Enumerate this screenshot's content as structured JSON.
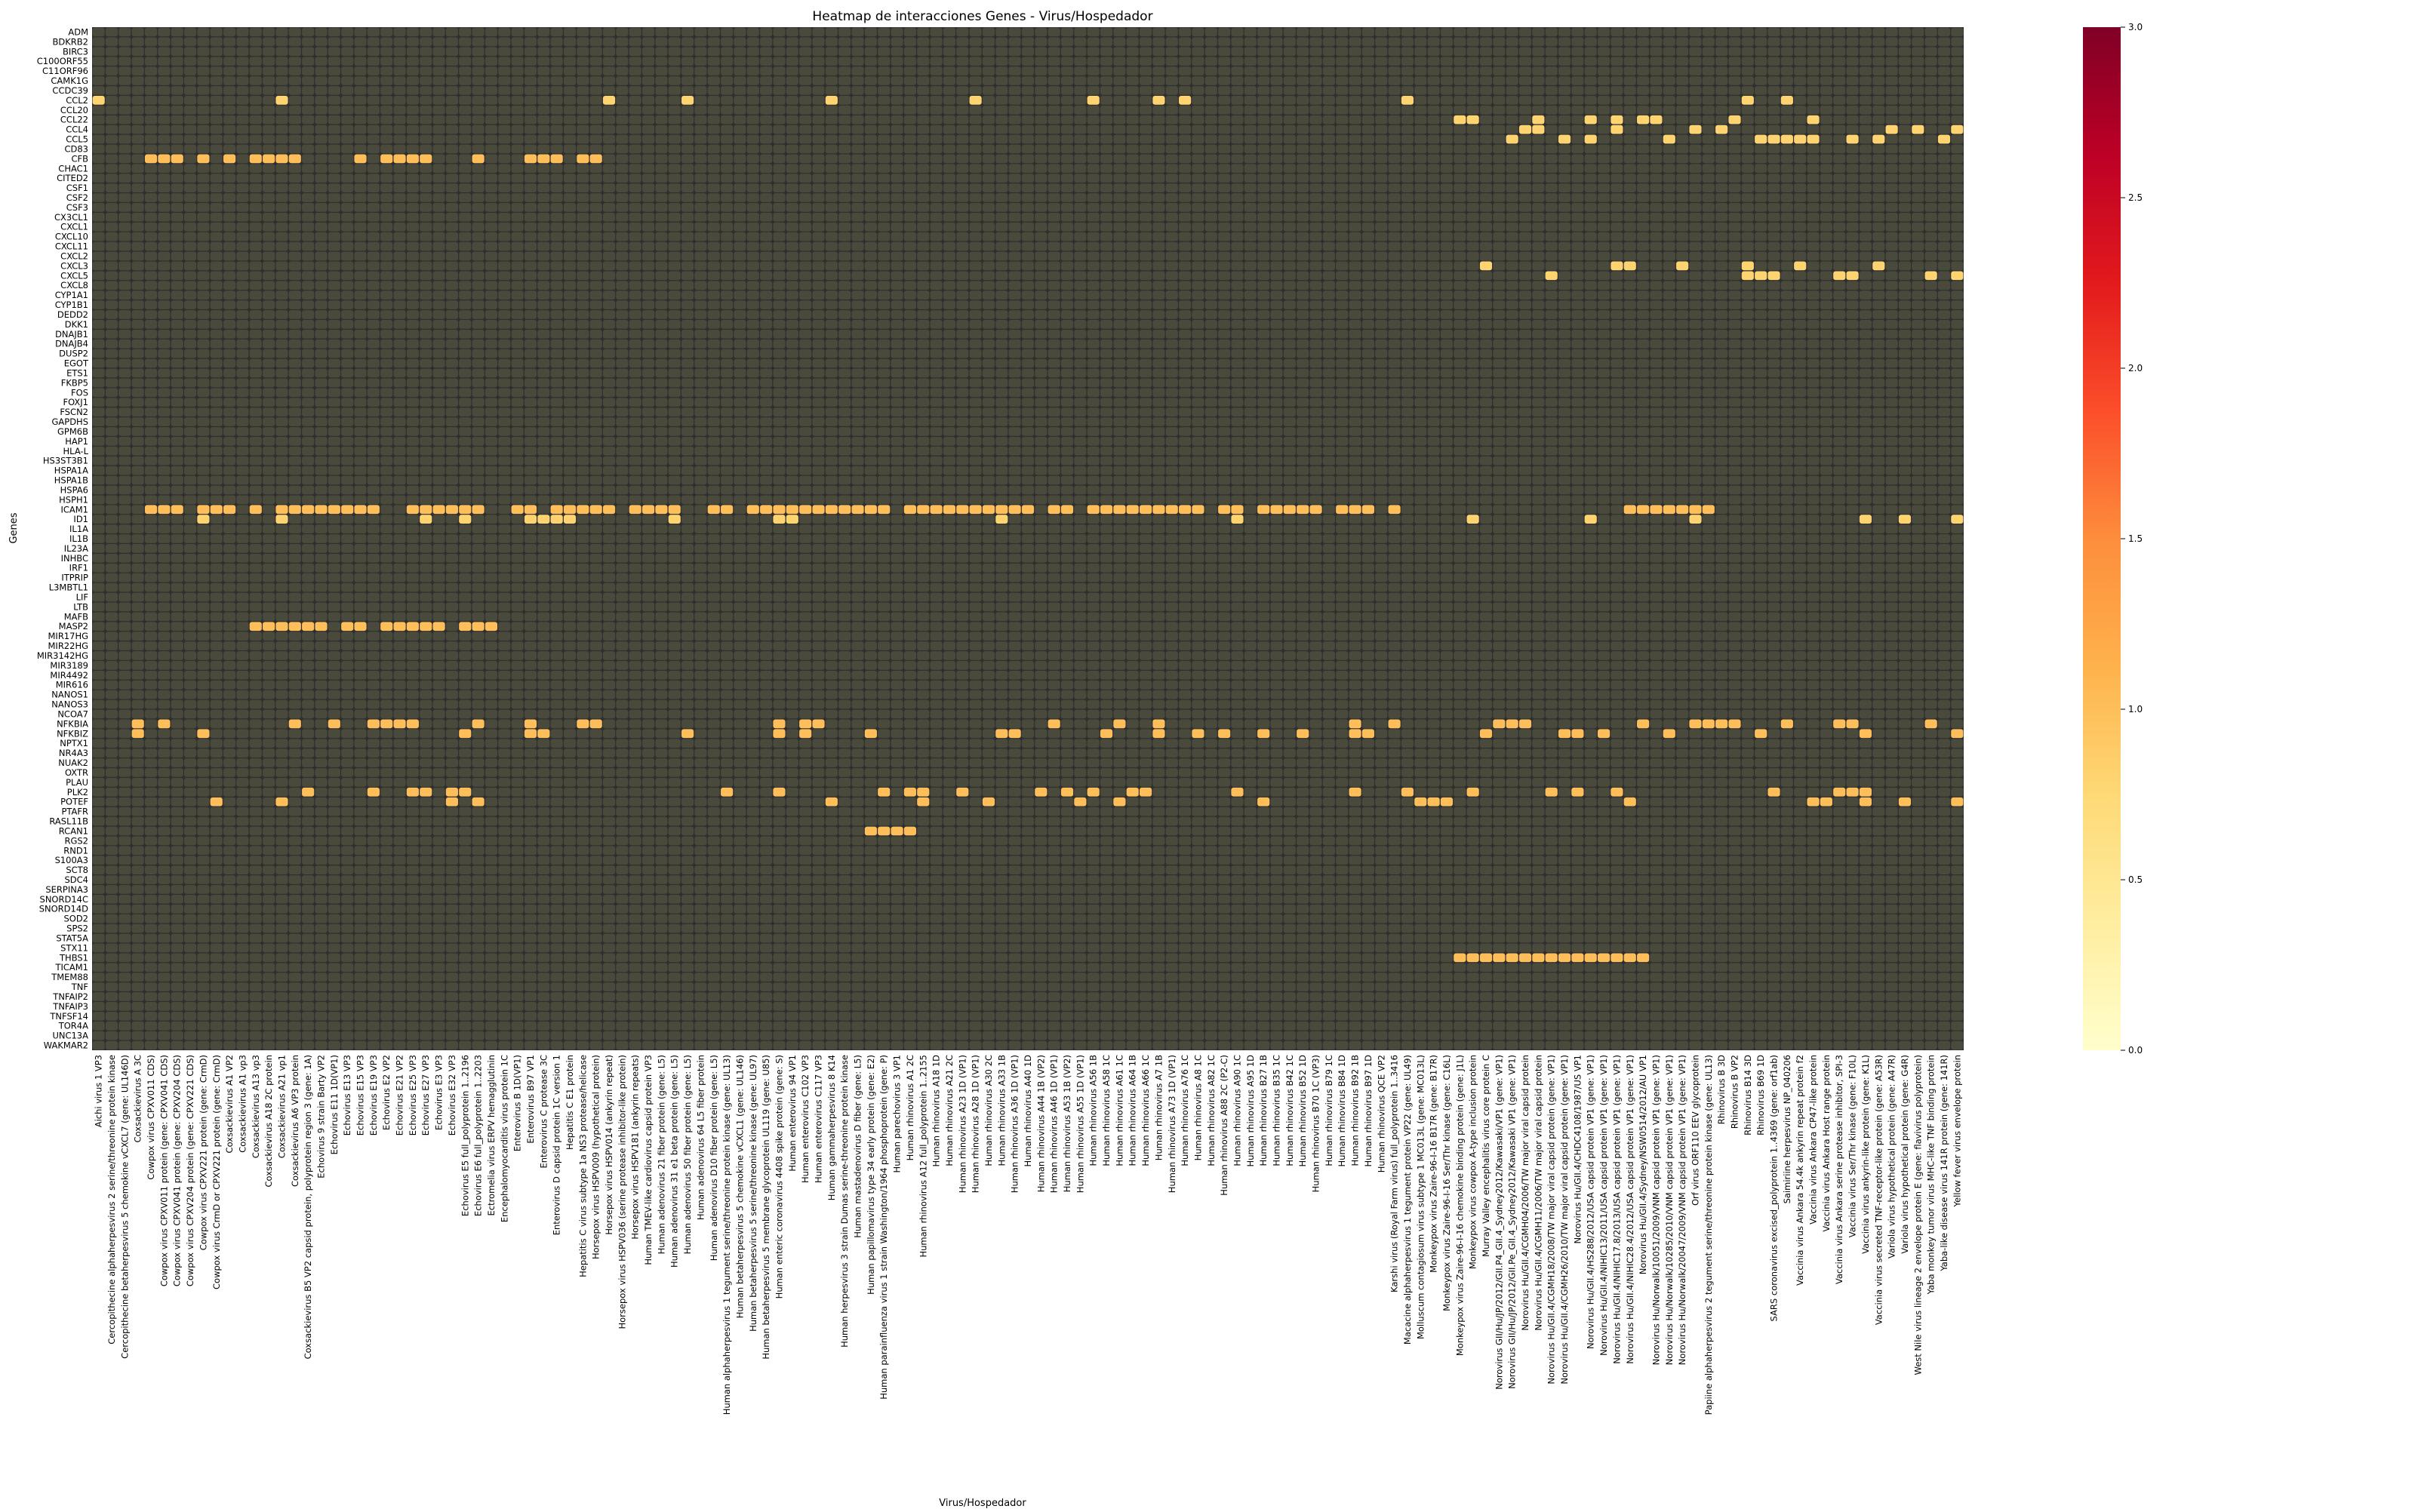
{
  "chart_data": {
    "type": "heatmap",
    "title": "Heatmap de interacciones Genes - Virus/Hospedador",
    "xlabel": "Virus/Hospedador",
    "ylabel": "Genes",
    "colorbar": {
      "range": [
        0.0,
        3.0
      ],
      "ticks": [
        "0.0",
        "0.5",
        "1.0",
        "1.5",
        "2.0",
        "2.5",
        "3.0"
      ],
      "colormap": "YlOrRd",
      "colors": [
        "#ffffcc",
        "#ffeda0",
        "#fed976",
        "#feb24c",
        "#fd8d3c",
        "#fc4e2a",
        "#e31a1c",
        "#bd0026",
        "#800026"
      ]
    },
    "grid": true,
    "cell_border_color": "#2f2f2f",
    "rows": [
      "ADM",
      "BDKRB2",
      "BIRC3",
      "C100ORF55",
      "C11ORF96",
      "CAMK1G",
      "CCDC39",
      "CCL2",
      "CCL20",
      "CCL22",
      "CCL4",
      "CCL5",
      "CD83",
      "CFB",
      "CHAC1",
      "CITED2",
      "CSF1",
      "CSF2",
      "CSF3",
      "CX3CL1",
      "CXCL1",
      "CXCL10",
      "CXCL11",
      "CXCL2",
      "CXCL3",
      "CXCL5",
      "CXCL8",
      "CYP1A1",
      "CYP1B1",
      "DEDD2",
      "DKK1",
      "DNAJB1",
      "DNAJB4",
      "DUSP2",
      "EGOT",
      "ETS1",
      "FKBP5",
      "FOS",
      "FOXJ1",
      "FSCN2",
      "GAPDHS",
      "GPM6B",
      "HAP1",
      "HLA-L",
      "HS3ST3B1",
      "HSPA1A",
      "HSPA1B",
      "HSPA6",
      "HSPH1",
      "ICAM1",
      "ID1",
      "IL1A",
      "IL1B",
      "IL23A",
      "INHBC",
      "IRF1",
      "ITPRIP",
      "L3MBTL1",
      "LIF",
      "LTB",
      "MAFB",
      "MASP2",
      "MIR17HG",
      "MIR22HG",
      "MIR3142HG",
      "MIR3189",
      "MIR4492",
      "MIR616",
      "NANOS1",
      "NANOS3",
      "NCOA7",
      "NFKBIA",
      "NFKBIZ",
      "NPTX1",
      "NR4A3",
      "NUAK2",
      "OXTR",
      "PLAU",
      "PLK2",
      "POTEF",
      "PTAFR",
      "RASL11B",
      "RCAN1",
      "RGS2",
      "RND1",
      "S100A3",
      "SCT8",
      "SDC4",
      "SERPINA3",
      "SNORD14C",
      "SNORD14D",
      "SOD2",
      "SPS2",
      "STAT5A",
      "STX11",
      "THBS1",
      "TICAM1",
      "TMEM88",
      "TNF",
      "TNFAIP2",
      "TNFAIP3",
      "TNFSF14",
      "TOR4A",
      "UNC13A",
      "WAKMAR2"
    ],
    "columns": [
      "Aichi virus 1 VP3",
      "Cercopithecine alphaherpesvirus 2 serine/threonine protein kinase",
      "Cercopithecine betaherpesvirus 5 chemokine vCXCL7 (gene: UL146D)",
      "Coxsackievirus A 3C",
      "Cowpox virus CPXV011 CDS)",
      "Cowpox virus CPXV011 protein (gene: CPXV041 CDS)",
      "Cowpox virus CPXV041 protein (gene: CPXV204 CDS)",
      "Cowpox virus CPXV204 protein (gene: CPXV221 CDS)",
      "Cowpox virus CPXV221 protein (gene: CrmD)",
      "Cowpox virus CrmD or CPXV221 protein (gene: CrmD)",
      "Coxsackievirus A1 VP2",
      "Coxsackievirus A1 vp3",
      "Coxsackievirus A13 vp3",
      "Coxsackievirus A18 2C protein",
      "Coxsackievirus A21 vp1",
      "Coxsackievirus A6 VP3 protein",
      "Coxsackievirus B5 VP2 capsid protein, polyprotein region 3 (gene: 1A)",
      "Echovirus 9 strain Barty VP2",
      "Echovirus E11 1D(VP1)",
      "Echovirus E13 VP3",
      "Echovirus E15 VP3",
      "Echovirus E19 VP3",
      "Echovirus E2 VP2",
      "Echovirus E21 VP2",
      "Echovirus E25 VP3",
      "Echovirus E27 VP3",
      "Echovirus E3 VP3",
      "Echovirus E32 VP3",
      "Echovirus E5 full_polyprotein 1..2196",
      "Echovirus E6 full_polyprotein 1..2203",
      "Ectromelia virus ERPV hemagglutinin",
      "Encephalomyocarditis virus protein 1C",
      "Enterovirus B 1D(VP1)",
      "Enterovirus B97 VP1",
      "Enterovirus C protease 3C",
      "Enterovirus D capsid protein 1C version 1",
      "Hepatitis C E1 protein",
      "Hepatitis C virus subtype 1a NS3 protease/helicase",
      "Horsepox virus HSPV009 (hypothetical protein)",
      "Horsepox virus HSPV014 (ankyrin repeat)",
      "Horsepox virus HSPV036 (serine protease inhibitor-like protein)",
      "Horsepox virus HSPV181 (ankyrin repeats)",
      "Human TMEV-like cardiovirus capsid protein VP3",
      "Human adenovirus 21 fiber protein (gene: L5)",
      "Human adenovirus 31 e1 beta protein (gene: L5)",
      "Human adenovirus 50 fiber protein (gene: L5)",
      "Human adenovirus 64 L5 fiber protein",
      "Human adenovirus D10 fiber protein (gene: L5)",
      "Human alphaherpesvirus 1 tegument serine/threonine protein kinase (gene: UL13)",
      "Human betaherpesvirus 5 chemokine vCXCL1 (gene: UL146)",
      "Human betaherpesvirus 5 serine/threonine kinase (gene: UL97)",
      "Human betaherpesvirus 5 membrane glycoprotein UL119 (gene: U85)",
      "Human enteric coronavirus 4408 spike protein (gene: S)",
      "Human enterovirus 94 VP1",
      "Human enterovirus C102 VP3",
      "Human enterovirus C117 VP3",
      "Human gammaherpesvirus 8 K14",
      "Human herpesvirus 3 strain Dumas serine-threonine protein kinase",
      "Human mastadenovirus D fiber (gene: L5)",
      "Human papillomavirus type 34 early protein (gene: E2)",
      "Human parainfluenza virus 1 strain Washington/1964 phosphoprotein (gene: P)",
      "Human parechovirus 3 VP1",
      "Human rhinovirus A1 2C",
      "Human rhinovirus A12 full_polyprotein 1..2155",
      "Human rhinovirus A18 1D",
      "Human rhinovirus A21 2C",
      "Human rhinovirus A23 1D (VP1)",
      "Human rhinovirus A28 1D (VP1)",
      "Human rhinovirus A30 2C",
      "Human rhinovirus A33 1B",
      "Human rhinovirus A36 1D (VP1)",
      "Human rhinovirus A40 1D",
      "Human rhinovirus A44 1B (VP2)",
      "Human rhinovirus A46 1D (VP1)",
      "Human rhinovirus A53 1B (VP2)",
      "Human rhinovirus A55 1D (VP1)",
      "Human rhinovirus A56 1B",
      "Human rhinovirus A58 1C",
      "Human rhinovirus A61 1C",
      "Human rhinovirus A64 1B",
      "Human rhinovirus A66 1C",
      "Human rhinovirus A7 1B",
      "Human rhinovirus A73 1D (VP1)",
      "Human rhinovirus A76 1C",
      "Human rhinovirus A8 1C",
      "Human rhinovirus A82 1C",
      "Human rhinovirus A88 2C (P2-C)",
      "Human rhinovirus A90 1C",
      "Human rhinovirus A95 1D",
      "Human rhinovirus B27 1B",
      "Human rhinovirus B35 1C",
      "Human rhinovirus B42 1C",
      "Human rhinovirus B52 1D",
      "Human rhinovirus B70 1C (VP3)",
      "Human rhinovirus B79 1C",
      "Human rhinovirus B84 1D",
      "Human rhinovirus B92 1B",
      "Human rhinovirus B97 1D",
      "Human rhinovirus QCE VP2",
      "Karshi virus (Royal Farm virus) full_polyprotein 1..3416",
      "Macacine alphaherpesvirus 1 tegument protein VP22 (gene: UL49)",
      "Molluscum contagiosum virus subtype 1 MC013L (gene: MC013L)",
      "Monkeypox virus Zaire-96-I-16 B17R (gene: B17R)",
      "Monkeypox virus Zaire-96-I-16 Ser/Thr kinase (gene: C16L)",
      "Monkeypox virus Zaire-96-I-16 chemokine binding protein (gene: J1L)",
      "Monkeypox virus cowpox A-type inclusion protein",
      "Murray Valley encephalitis virus core protein C",
      "Norovirus GII/Hu/JP/2012/GII.P4_GII.4_Sydney2012/Kawasaki/VP1 (gene: VP1)",
      "Norovirus GII/Hu/JP/2012/GII.Pe_GII.4_Sydney2012/Kawasaki VP1 (gene: VP1)",
      "Norovirus Hu/GII.4/CGMH04/2006/TW major viral capsid protein",
      "Norovirus Hu/GII.4/CGMH11/2006/TW major viral capsid protein",
      "Norovirus Hu/GII.4/CGMH18/2008/TW major viral capsid protein (gene: VP1)",
      "Norovirus Hu/GII.4/CGMH26/2010/TW major viral capsid protein (gene: VP1)",
      "Norovirus Hu/GII.4/CHDC4108/1987/US VP1",
      "Norovirus Hu/GII.4/HS288/2012/USA capsid protein VP1 (gene: VP1)",
      "Norovirus Hu/GII.4/NIHIC13/2011/USA capsid protein VP1 (gene: VP1)",
      "Norovirus Hu/GII.4/NIHIC17.8/2013/USA capsid protein VP1 (gene: VP1)",
      "Norovirus Hu/GII.4/NIHIC28.4/2012/USA capsid protein VP1 (gene: VP1)",
      "Norovirus Hu/GII.4/Sydney/NSW0514/2012/AU VP1",
      "Norovirus Hu/Norwalk/10051/2009/VNM capsid protein VP1 (gene: VP1)",
      "Norovirus Hu/Norwalk/10285/2010/VNM capsid protein VP1 (gene: VP1)",
      "Norovirus Hu/Norwalk/20047/2009/VNM capsid protein VP1 (gene: VP1)",
      "Orf virus ORF110 EEV glycoprotein",
      "Papiine alphaherpesvirus 2 tegument serine/threonine protein kinase (gene: UL13)",
      "Rhinovirus B 3D",
      "Rhinovirus B VP2",
      "Rhinovirus B14 3D",
      "Rhinovirus B69 1D",
      "SARS coronavirus excised_polyprotein 1..4369 (gene: orf1ab)",
      "Saimiriine herpesvirus NP_040206",
      "Vaccinia virus Ankara 54.4k ankyrin repeat protein f2",
      "Vaccinia virus Ankara CP47-like protein",
      "Vaccinia virus Ankara Host range protein",
      "Vaccinia virus Ankara serine protease inhibitor, SPI-3",
      "Vaccinia virus Ser/Thr kinase (gene: F10L)",
      "Vaccinia virus ankyrin-like protein (gene: K1L)",
      "Vaccinia virus secreted TNF-receptor-like protein (gene: A53R)",
      "Variola virus hypothetical protein (gene: A47R)",
      "Variola virus hypothetical protein (gene: G4R)",
      "West Nile virus lineage 2 envelope protein E (gene: flavivirus polyprotein)",
      "Yaba monkey tumor virus MHC-like TNF binding protein",
      "Yaba-like disease virus 141R protein (gene: 141R)",
      "Yellow fever virus envelope protein"
    ],
    "nonzero_cells": [
      {
        "row": "ICAM1",
        "value": 1.0,
        "columns_range": [
          4,
          99
        ],
        "density": 0.8
      },
      {
        "row": "ICAM1",
        "value": 1.0,
        "columns_range": [
          117,
          124
        ],
        "density": 0.9
      },
      {
        "row": "CFB",
        "value": 1.0,
        "columns_range": [
          4,
          38
        ],
        "density": 0.6
      },
      {
        "row": "NFKBIA",
        "value": 1.0,
        "columns_range": [
          0,
          144
        ],
        "density": 0.25
      },
      {
        "row": "NFKBIZ",
        "value": 1.0,
        "columns_range": [
          0,
          144
        ],
        "density": 0.15
      },
      {
        "row": "PLK2",
        "value": 1.0,
        "columns_range": [
          0,
          144
        ],
        "density": 0.2
      },
      {
        "row": "POTEF",
        "value": 1.0,
        "columns_range": [
          0,
          144
        ],
        "density": 0.15
      },
      {
        "row": "THBS1",
        "value": 1.0,
        "columns_range": [
          104,
          118
        ],
        "density": 0.95
      },
      {
        "row": "MASP2",
        "value": 1.0,
        "columns_range": [
          12,
          30
        ],
        "density": 0.6
      },
      {
        "row": "RCAN1",
        "value": 1.0,
        "columns_range": [
          58,
          62
        ],
        "density": 0.8
      },
      {
        "row": "ID1",
        "value": 0.8,
        "columns_range": [
          0,
          144
        ],
        "density": 0.1
      },
      {
        "row": "CCL2",
        "value": 0.8,
        "columns_range": [
          0,
          144
        ],
        "density": 0.08
      },
      {
        "row": "CCL22",
        "value": 0.8,
        "columns_range": [
          100,
          144
        ],
        "density": 0.2
      },
      {
        "row": "CCL4",
        "value": 0.8,
        "columns_range": [
          100,
          144
        ],
        "density": 0.2
      },
      {
        "row": "CCL5",
        "value": 0.8,
        "columns_range": [
          100,
          144
        ],
        "density": 0.15
      },
      {
        "row": "CXCL3",
        "value": 0.8,
        "columns_range": [
          100,
          144
        ],
        "density": 0.15
      },
      {
        "row": "CXCL5",
        "value": 0.8,
        "columns_range": [
          100,
          144
        ],
        "density": 0.15
      }
    ]
  }
}
